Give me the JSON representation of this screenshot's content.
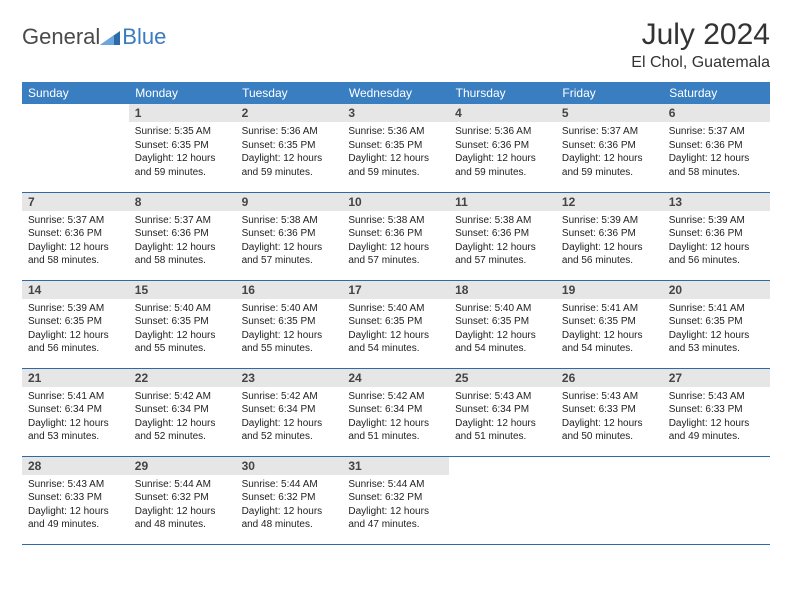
{
  "logo": {
    "general": "General",
    "blue": "Blue"
  },
  "title": "July 2024",
  "location": "El Chol, Guatemala",
  "colors": {
    "header_bg": "#3a7ec2",
    "header_text": "#ffffff",
    "daynum_bg": "#e6e6e6",
    "row_border": "#2f6aa8",
    "logo_blue": "#3b7bbf",
    "logo_gray": "#4a4a4a"
  },
  "weekdays": [
    "Sunday",
    "Monday",
    "Tuesday",
    "Wednesday",
    "Thursday",
    "Friday",
    "Saturday"
  ],
  "weeks": [
    [
      {
        "n": "",
        "sr": "",
        "ss": "",
        "dl": ""
      },
      {
        "n": "1",
        "sr": "Sunrise: 5:35 AM",
        "ss": "Sunset: 6:35 PM",
        "dl": "Daylight: 12 hours and 59 minutes."
      },
      {
        "n": "2",
        "sr": "Sunrise: 5:36 AM",
        "ss": "Sunset: 6:35 PM",
        "dl": "Daylight: 12 hours and 59 minutes."
      },
      {
        "n": "3",
        "sr": "Sunrise: 5:36 AM",
        "ss": "Sunset: 6:35 PM",
        "dl": "Daylight: 12 hours and 59 minutes."
      },
      {
        "n": "4",
        "sr": "Sunrise: 5:36 AM",
        "ss": "Sunset: 6:36 PM",
        "dl": "Daylight: 12 hours and 59 minutes."
      },
      {
        "n": "5",
        "sr": "Sunrise: 5:37 AM",
        "ss": "Sunset: 6:36 PM",
        "dl": "Daylight: 12 hours and 59 minutes."
      },
      {
        "n": "6",
        "sr": "Sunrise: 5:37 AM",
        "ss": "Sunset: 6:36 PM",
        "dl": "Daylight: 12 hours and 58 minutes."
      }
    ],
    [
      {
        "n": "7",
        "sr": "Sunrise: 5:37 AM",
        "ss": "Sunset: 6:36 PM",
        "dl": "Daylight: 12 hours and 58 minutes."
      },
      {
        "n": "8",
        "sr": "Sunrise: 5:37 AM",
        "ss": "Sunset: 6:36 PM",
        "dl": "Daylight: 12 hours and 58 minutes."
      },
      {
        "n": "9",
        "sr": "Sunrise: 5:38 AM",
        "ss": "Sunset: 6:36 PM",
        "dl": "Daylight: 12 hours and 57 minutes."
      },
      {
        "n": "10",
        "sr": "Sunrise: 5:38 AM",
        "ss": "Sunset: 6:36 PM",
        "dl": "Daylight: 12 hours and 57 minutes."
      },
      {
        "n": "11",
        "sr": "Sunrise: 5:38 AM",
        "ss": "Sunset: 6:36 PM",
        "dl": "Daylight: 12 hours and 57 minutes."
      },
      {
        "n": "12",
        "sr": "Sunrise: 5:39 AM",
        "ss": "Sunset: 6:36 PM",
        "dl": "Daylight: 12 hours and 56 minutes."
      },
      {
        "n": "13",
        "sr": "Sunrise: 5:39 AM",
        "ss": "Sunset: 6:36 PM",
        "dl": "Daylight: 12 hours and 56 minutes."
      }
    ],
    [
      {
        "n": "14",
        "sr": "Sunrise: 5:39 AM",
        "ss": "Sunset: 6:35 PM",
        "dl": "Daylight: 12 hours and 56 minutes."
      },
      {
        "n": "15",
        "sr": "Sunrise: 5:40 AM",
        "ss": "Sunset: 6:35 PM",
        "dl": "Daylight: 12 hours and 55 minutes."
      },
      {
        "n": "16",
        "sr": "Sunrise: 5:40 AM",
        "ss": "Sunset: 6:35 PM",
        "dl": "Daylight: 12 hours and 55 minutes."
      },
      {
        "n": "17",
        "sr": "Sunrise: 5:40 AM",
        "ss": "Sunset: 6:35 PM",
        "dl": "Daylight: 12 hours and 54 minutes."
      },
      {
        "n": "18",
        "sr": "Sunrise: 5:40 AM",
        "ss": "Sunset: 6:35 PM",
        "dl": "Daylight: 12 hours and 54 minutes."
      },
      {
        "n": "19",
        "sr": "Sunrise: 5:41 AM",
        "ss": "Sunset: 6:35 PM",
        "dl": "Daylight: 12 hours and 54 minutes."
      },
      {
        "n": "20",
        "sr": "Sunrise: 5:41 AM",
        "ss": "Sunset: 6:35 PM",
        "dl": "Daylight: 12 hours and 53 minutes."
      }
    ],
    [
      {
        "n": "21",
        "sr": "Sunrise: 5:41 AM",
        "ss": "Sunset: 6:34 PM",
        "dl": "Daylight: 12 hours and 53 minutes."
      },
      {
        "n": "22",
        "sr": "Sunrise: 5:42 AM",
        "ss": "Sunset: 6:34 PM",
        "dl": "Daylight: 12 hours and 52 minutes."
      },
      {
        "n": "23",
        "sr": "Sunrise: 5:42 AM",
        "ss": "Sunset: 6:34 PM",
        "dl": "Daylight: 12 hours and 52 minutes."
      },
      {
        "n": "24",
        "sr": "Sunrise: 5:42 AM",
        "ss": "Sunset: 6:34 PM",
        "dl": "Daylight: 12 hours and 51 minutes."
      },
      {
        "n": "25",
        "sr": "Sunrise: 5:43 AM",
        "ss": "Sunset: 6:34 PM",
        "dl": "Daylight: 12 hours and 51 minutes."
      },
      {
        "n": "26",
        "sr": "Sunrise: 5:43 AM",
        "ss": "Sunset: 6:33 PM",
        "dl": "Daylight: 12 hours and 50 minutes."
      },
      {
        "n": "27",
        "sr": "Sunrise: 5:43 AM",
        "ss": "Sunset: 6:33 PM",
        "dl": "Daylight: 12 hours and 49 minutes."
      }
    ],
    [
      {
        "n": "28",
        "sr": "Sunrise: 5:43 AM",
        "ss": "Sunset: 6:33 PM",
        "dl": "Daylight: 12 hours and 49 minutes."
      },
      {
        "n": "29",
        "sr": "Sunrise: 5:44 AM",
        "ss": "Sunset: 6:32 PM",
        "dl": "Daylight: 12 hours and 48 minutes."
      },
      {
        "n": "30",
        "sr": "Sunrise: 5:44 AM",
        "ss": "Sunset: 6:32 PM",
        "dl": "Daylight: 12 hours and 48 minutes."
      },
      {
        "n": "31",
        "sr": "Sunrise: 5:44 AM",
        "ss": "Sunset: 6:32 PM",
        "dl": "Daylight: 12 hours and 47 minutes."
      },
      {
        "n": "",
        "sr": "",
        "ss": "",
        "dl": ""
      },
      {
        "n": "",
        "sr": "",
        "ss": "",
        "dl": ""
      },
      {
        "n": "",
        "sr": "",
        "ss": "",
        "dl": ""
      }
    ]
  ]
}
